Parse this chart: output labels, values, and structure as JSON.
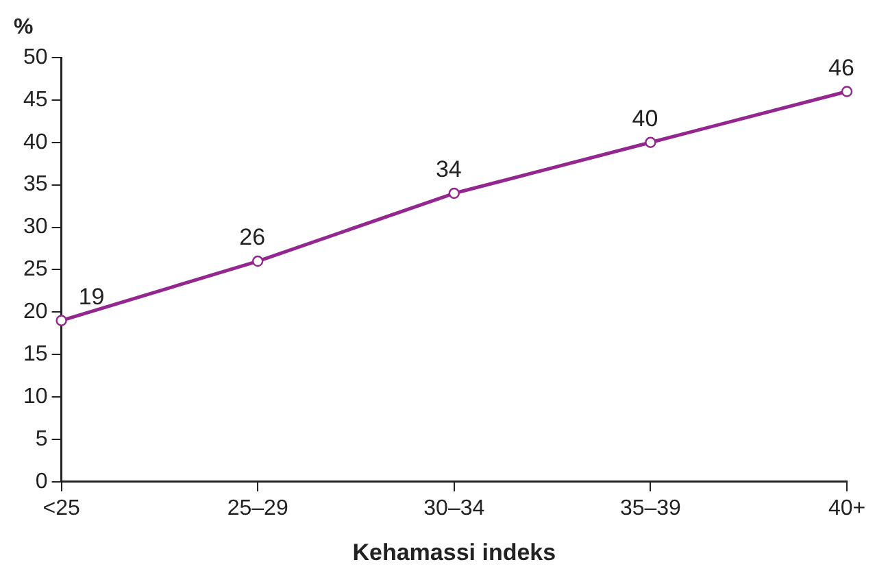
{
  "chart_data": {
    "type": "line",
    "xlabel": "Kehamassi indeks",
    "ylabel": "%",
    "categories": [
      "<25",
      "25–29",
      "30–34",
      "35–39",
      "40+"
    ],
    "series": [
      {
        "color": "#93278f",
        "values": [
          19,
          26,
          34,
          40,
          46
        ]
      }
    ],
    "ylim": [
      0,
      50
    ],
    "yticks": [
      0,
      5,
      10,
      15,
      20,
      25,
      30,
      35,
      40,
      45,
      50
    ],
    "grid": false,
    "legend": false,
    "marker": "circle",
    "line_style": "solid",
    "data_labels": true
  }
}
